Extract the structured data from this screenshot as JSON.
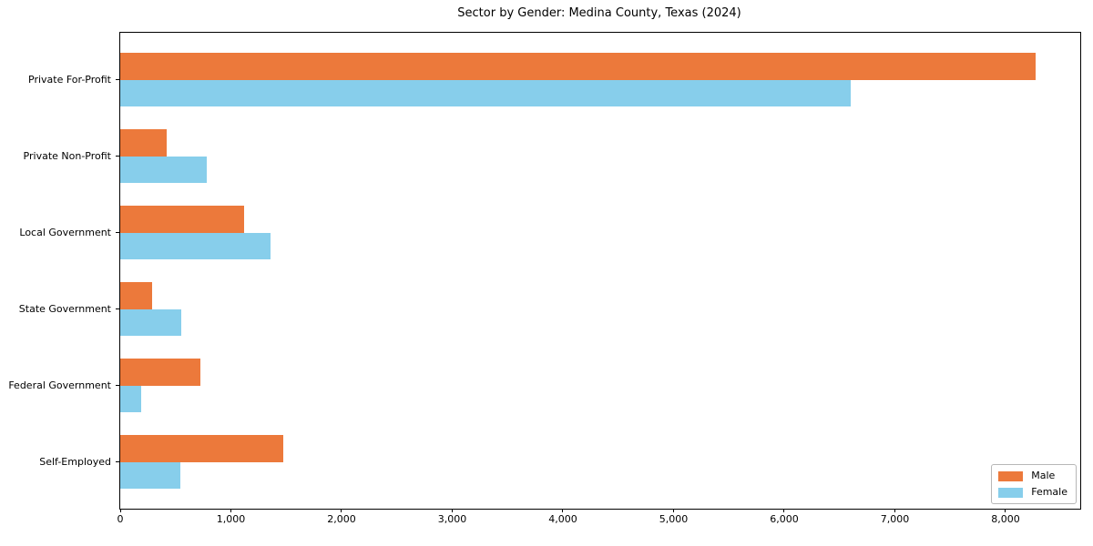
{
  "chart_data": {
    "type": "bar",
    "orientation": "horizontal",
    "title": "Sector by Gender: Medina County, Texas (2024)",
    "categories": [
      "Private For-Profit",
      "Private Non-Profit",
      "Local Government",
      "State Government",
      "Federal Government",
      "Self-Employed"
    ],
    "series": [
      {
        "name": "Male",
        "color": "#ec793b",
        "values": [
          8270,
          420,
          1120,
          290,
          720,
          1470
        ]
      },
      {
        "name": "Female",
        "color": "#87ceeb",
        "values": [
          6600,
          780,
          1360,
          550,
          190,
          540
        ]
      }
    ],
    "xlabel": "",
    "ylabel": "",
    "xlim": [
      0,
      8675
    ],
    "xticks": [
      0,
      1000,
      2000,
      3000,
      4000,
      5000,
      6000,
      7000,
      8000
    ],
    "xtick_labels": [
      "0",
      "1,000",
      "2,000",
      "3,000",
      "4,000",
      "5,000",
      "6,000",
      "7,000",
      "8,000"
    ],
    "grid": false,
    "legend_position": "lower right"
  }
}
